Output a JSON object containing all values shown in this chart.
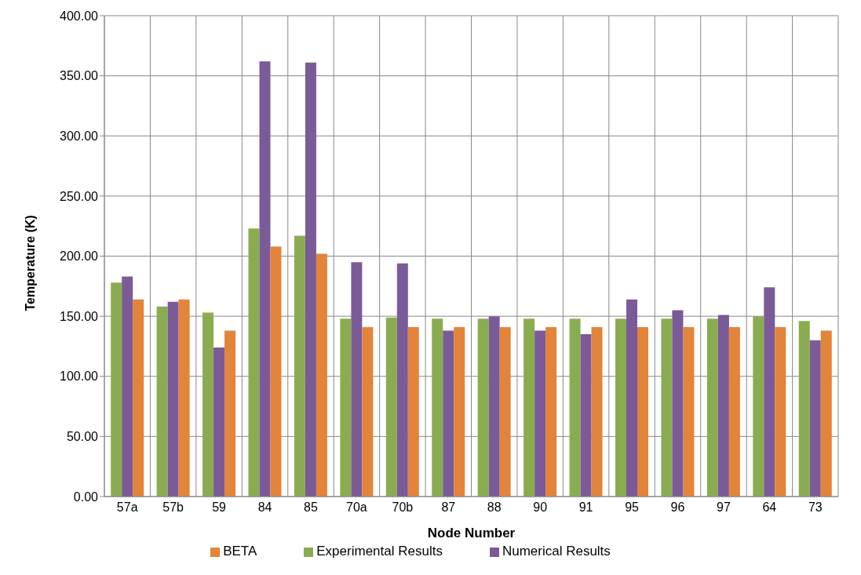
{
  "chart_data": {
    "type": "bar",
    "xlabel": "Node Number",
    "ylabel": "Temperature (K)",
    "categories": [
      "57a",
      "57b",
      "59",
      "84",
      "85",
      "70a",
      "70b",
      "87",
      "88",
      "90",
      "91",
      "95",
      "96",
      "97",
      "64",
      "73"
    ],
    "series": [
      {
        "name": "Experimental Results",
        "color": "#8aac51",
        "values": [
          178,
          158,
          153,
          223,
          217,
          148,
          149,
          148,
          148,
          148,
          148,
          148,
          148,
          148,
          150,
          146
        ]
      },
      {
        "name": "Numerical Results",
        "color": "#7a5b98",
        "values": [
          183,
          162,
          124,
          362,
          361,
          195,
          194,
          138,
          150,
          138,
          135,
          164,
          155,
          151,
          174,
          130
        ]
      },
      {
        "name": "BETA",
        "color": "#e2843a",
        "values": [
          164,
          164,
          138,
          208,
          202,
          141,
          141,
          141,
          141,
          141,
          141,
          141,
          141,
          141,
          141,
          138
        ]
      }
    ],
    "ylim": [
      0,
      400
    ],
    "yticks": [
      {
        "value": 0,
        "label": "0.00"
      },
      {
        "value": 50,
        "label": "50.00"
      },
      {
        "value": 100,
        "label": "100.00"
      },
      {
        "value": 150,
        "label": "150.00"
      },
      {
        "value": 200,
        "label": "200.00"
      },
      {
        "value": 250,
        "label": "250.00"
      },
      {
        "value": 300,
        "label": "300.00"
      },
      {
        "value": 350,
        "label": "350.00"
      },
      {
        "value": 400,
        "label": "400.00"
      }
    ],
    "grid": true,
    "legend": "bottom"
  }
}
